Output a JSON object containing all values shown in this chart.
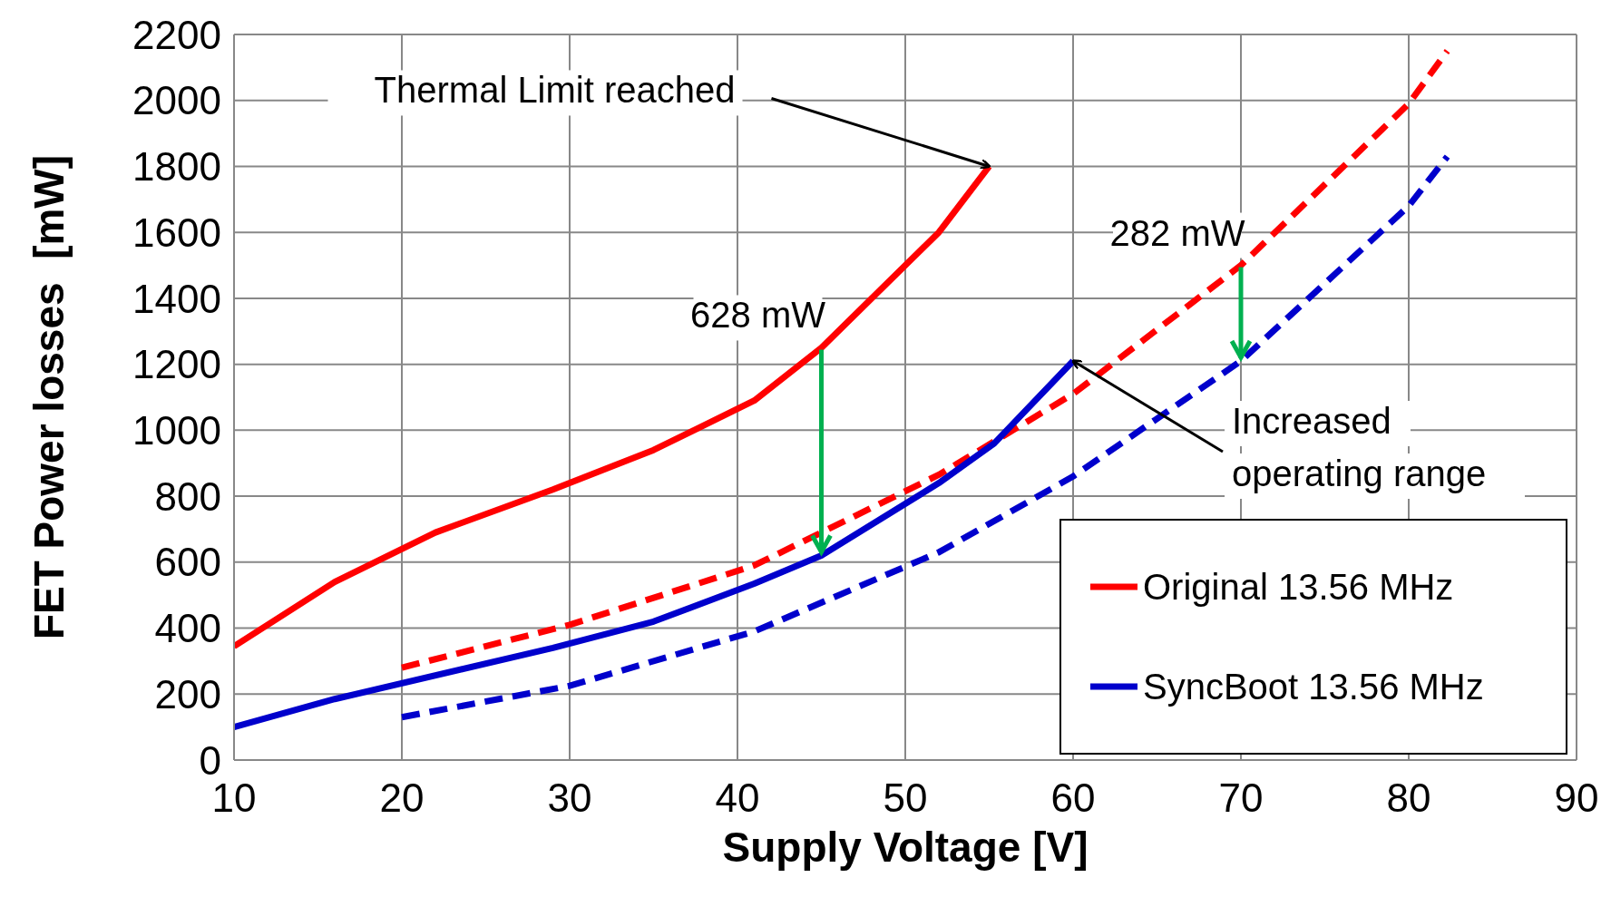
{
  "chart_data": {
    "type": "line",
    "xlabel": "Supply Voltage [V]",
    "ylabel": "FET Power losses  [mW]",
    "xlim": [
      10,
      90
    ],
    "xticks": [
      10,
      20,
      30,
      40,
      50,
      60,
      70,
      80,
      90
    ],
    "ylim": [
      0,
      2200
    ],
    "yticks": [
      0,
      200,
      400,
      600,
      800,
      1000,
      1200,
      1400,
      1600,
      1800,
      2000,
      2200
    ],
    "grid": true,
    "legend": "bottom right",
    "marker": "none",
    "series": [
      {
        "name": "Original 13.56 MHz",
        "color": "#ff0000",
        "line_style": "solid",
        "x": [
          10,
          16,
          22,
          29,
          35,
          41,
          45,
          52,
          55
        ],
        "values": [
          345,
          540,
          690,
          820,
          940,
          1090,
          1250,
          1600,
          1800
        ]
      },
      {
        "color": "#ff0000",
        "line_style": "dashed",
        "x": [
          20,
          30,
          41,
          52,
          60,
          70,
          80,
          82.3
        ],
        "values": [
          280,
          410,
          590,
          865,
          1110,
          1500,
          1990,
          2150
        ]
      },
      {
        "name": "SyncBoot 13.56 MHz",
        "color": "#0000cc",
        "line_style": "solid",
        "x": [
          10,
          16,
          29,
          35,
          41,
          45,
          52,
          55.3,
          60
        ],
        "values": [
          100,
          185,
          340,
          420,
          535,
          620,
          840,
          960,
          1210
        ]
      },
      {
        "color": "#0000cc",
        "line_style": "dashed",
        "x": [
          20,
          30,
          41,
          52,
          60,
          70,
          80,
          82.3
        ],
        "values": [
          130,
          225,
          390,
          630,
          860,
          1210,
          1680,
          1830
        ]
      }
    ],
    "annotations": [
      {
        "text": "Thermal Limit reached",
        "x": 55,
        "y": 1800
      },
      {
        "text": "628 mW",
        "x": 45,
        "y": 1250
      },
      {
        "text": "282 mW",
        "x": 70,
        "y": 1500
      },
      {
        "text": "Increased operating range",
        "x": 60,
        "y": 1210
      }
    ]
  }
}
